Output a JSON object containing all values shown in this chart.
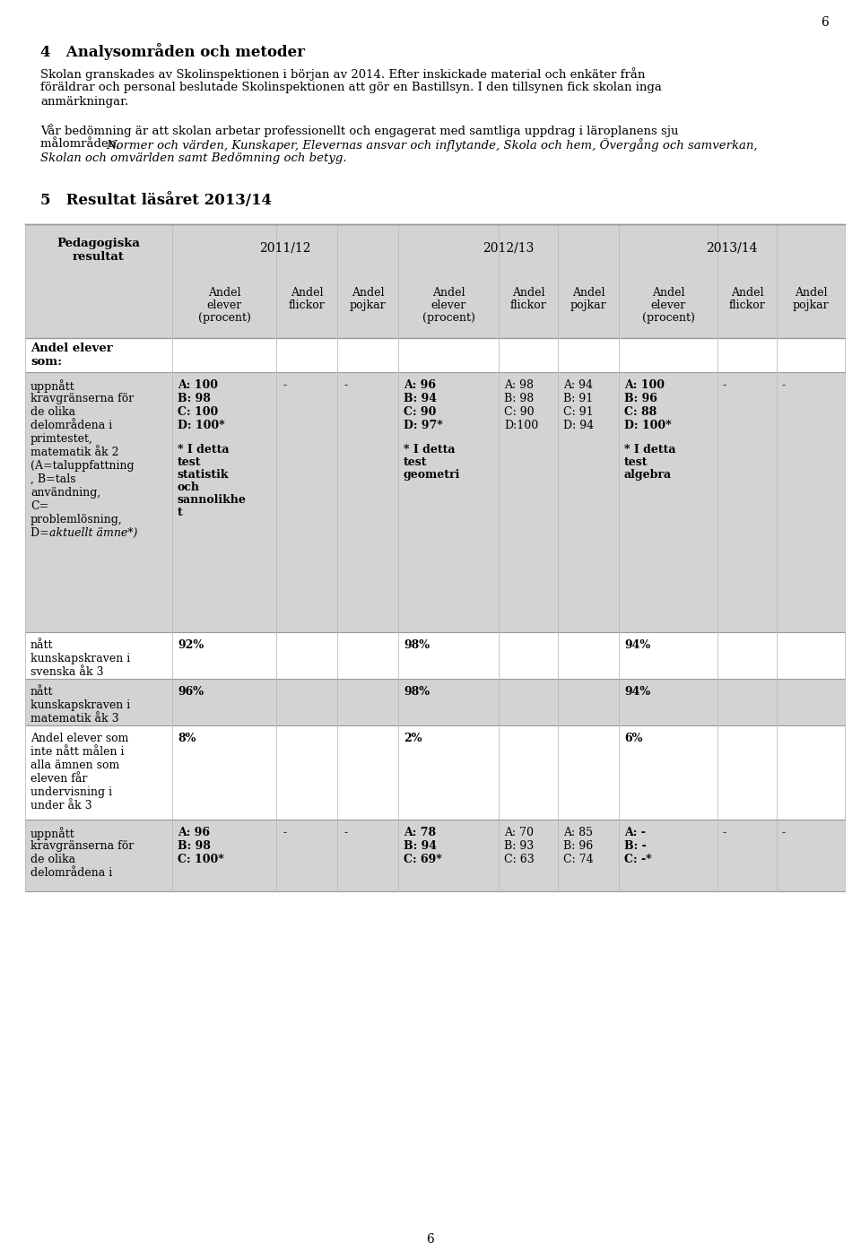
{
  "page_number": "6",
  "section4_title": "4   Analysområden och metoder",
  "section4_para1_lines": [
    "Skolan granskades av Skolinspektionen i början av 2014. Efter inskickade material och enkäter från",
    "föräldrar och personal beslutade Skolinspektionen att gör en Bastillsyn. I den tillsynen fick skolan inga",
    "anmärkningar."
  ],
  "section4_para2_line1": "Vår bedömning är att skolan arbetar professionellt och engagerat med samtliga uppdrag i läroplanens sju",
  "section4_para2_line2_normal": "målområden, ",
  "section4_para2_line2_italic": "Normer och värden, Kunskaper, Elevernas ansvar och inflytande, Skola och hem, Övergång och samverkan,",
  "section4_para2_line3_italic": "Skolan och omvärlden samt Bedömning och betyg.",
  "section5_title": "5   Resultat läsåret 2013/14",
  "table_header_year1": "2011/12",
  "table_header_year2": "2012/13",
  "table_header_year3": "2013/14",
  "table_subheader": [
    "Andel\nelever\n(procent)",
    "Andel\nflickor",
    "Andel\npojkar",
    "Andel\nelever\n(procent)",
    "Andel\nflickor",
    "Andel\npojkar",
    "Andel\nelever\n(procent)",
    "Andel\nflickor",
    "Andel\npojkar"
  ],
  "bg_color": "#ffffff",
  "table_header_bg": "#d3d3d3",
  "text_color": "#000000"
}
